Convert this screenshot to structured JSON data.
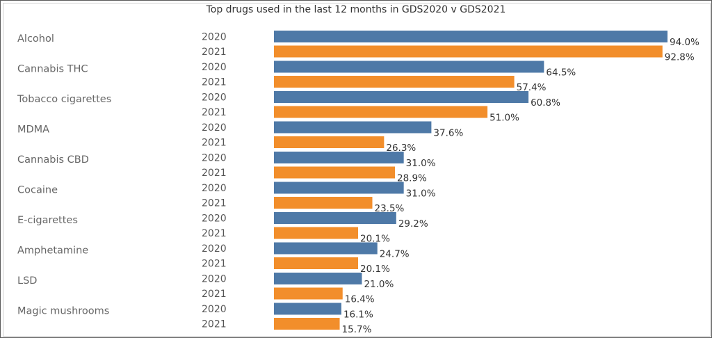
{
  "chart_data": {
    "type": "bar",
    "orientation": "horizontal",
    "title": "Top drugs used in the last 12 months in GDS2020 v GDS2021",
    "categories": [
      "Alcohol",
      "Cannabis THC",
      "Tobacco cigarettes",
      "MDMA",
      "Cannabis CBD",
      "Cocaine",
      "E-cigarettes",
      "Amphetamine",
      "LSD",
      "Magic mushrooms"
    ],
    "series": [
      {
        "name": "2020",
        "color": "#4e79a7",
        "values": [
          94.0,
          64.5,
          60.8,
          37.6,
          31.0,
          31.0,
          29.2,
          24.7,
          21.0,
          16.1
        ]
      },
      {
        "name": "2021",
        "color": "#f28e2b",
        "values": [
          92.8,
          57.4,
          51.0,
          26.3,
          28.9,
          23.5,
          20.1,
          20.1,
          16.4,
          15.7
        ]
      }
    ],
    "value_suffix": "%",
    "xlim": [
      0,
      100
    ],
    "grid": false
  }
}
